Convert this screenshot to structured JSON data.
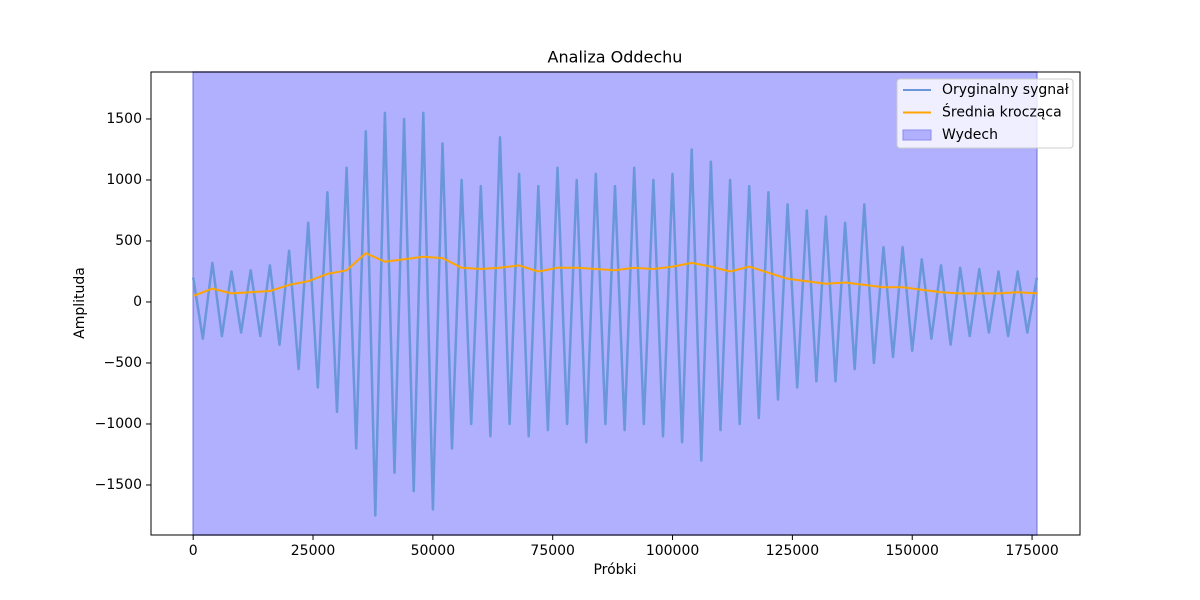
{
  "chart_data": {
    "type": "line",
    "title": "Analiza Oddechu",
    "x_label": "Próbki",
    "y_label": "Amplituda",
    "xlim": [
      -8800,
      185000
    ],
    "ylim": [
      -1910,
      1885
    ],
    "xticks": [
      0,
      25000,
      50000,
      75000,
      100000,
      125000,
      150000,
      175000
    ],
    "yticks": [
      {
        "value": -1500,
        "label": "−1500"
      },
      {
        "value": -1000,
        "label": "−1000"
      },
      {
        "value": -500,
        "label": "−500"
      },
      0,
      500,
      1000,
      1500
    ],
    "grid": false,
    "legend": "upper right",
    "spans": [
      {
        "name": "Wydech",
        "color": "#b0b0ff",
        "start": 0,
        "end": 176000
      }
    ],
    "series": [
      {
        "name": "Oryginalny sygnał",
        "color": "#6a96da",
        "x": [
          0,
          2000,
          4000,
          6000,
          8000,
          10000,
          12000,
          14000,
          16000,
          18000,
          20000,
          22000,
          24000,
          26000,
          28000,
          30000,
          32000,
          34000,
          36000,
          38000,
          40000,
          42000,
          44000,
          46000,
          48000,
          50000,
          52000,
          54000,
          56000,
          58000,
          60000,
          62000,
          64000,
          66000,
          68000,
          70000,
          72000,
          74000,
          76000,
          78000,
          80000,
          82000,
          84000,
          86000,
          88000,
          90000,
          92000,
          94000,
          96000,
          98000,
          100000,
          102000,
          104000,
          106000,
          108000,
          110000,
          112000,
          114000,
          116000,
          118000,
          120000,
          122000,
          124000,
          126000,
          128000,
          130000,
          132000,
          134000,
          136000,
          138000,
          140000,
          142000,
          144000,
          146000,
          148000,
          150000,
          152000,
          154000,
          156000,
          158000,
          160000,
          162000,
          164000,
          166000,
          168000,
          170000,
          172000,
          174000,
          176000
        ],
        "values": [
          200,
          -300,
          320,
          -280,
          250,
          -250,
          260,
          -280,
          300,
          -350,
          420,
          -550,
          650,
          -700,
          900,
          -900,
          1100,
          -1200,
          1400,
          -1750,
          1550,
          -1400,
          1500,
          -1550,
          1550,
          -1700,
          1300,
          -1200,
          1000,
          -1000,
          950,
          -1100,
          1350,
          -1000,
          1050,
          -1100,
          950,
          -1050,
          1100,
          -1000,
          1000,
          -1150,
          1050,
          -1000,
          950,
          -1050,
          1100,
          -1000,
          1000,
          -1100,
          1050,
          -1150,
          1250,
          -1300,
          1150,
          -1050,
          1000,
          -1000,
          950,
          -950,
          900,
          -800,
          800,
          -700,
          750,
          -650,
          700,
          -650,
          650,
          -550,
          800,
          -500,
          450,
          -450,
          450,
          -400,
          350,
          -300,
          300,
          -350,
          280,
          -280,
          270,
          -250,
          250,
          -280,
          250,
          -250,
          200
        ]
      },
      {
        "name": "Średnia krocząca",
        "color": "#ffa500",
        "x": [
          0,
          4000,
          8000,
          12000,
          16000,
          20000,
          24000,
          28000,
          32000,
          36000,
          40000,
          44000,
          48000,
          52000,
          56000,
          60000,
          64000,
          68000,
          72000,
          76000,
          80000,
          84000,
          88000,
          92000,
          96000,
          100000,
          104000,
          108000,
          112000,
          116000,
          120000,
          124000,
          128000,
          132000,
          136000,
          140000,
          144000,
          148000,
          152000,
          156000,
          160000,
          164000,
          168000,
          172000,
          176000
        ],
        "values": [
          50,
          110,
          70,
          80,
          90,
          140,
          170,
          230,
          260,
          400,
          330,
          350,
          370,
          360,
          280,
          270,
          280,
          300,
          250,
          280,
          280,
          270,
          260,
          280,
          270,
          290,
          320,
          290,
          250,
          290,
          240,
          190,
          170,
          150,
          160,
          140,
          120,
          120,
          100,
          80,
          70,
          70,
          70,
          80,
          70
        ]
      }
    ]
  }
}
